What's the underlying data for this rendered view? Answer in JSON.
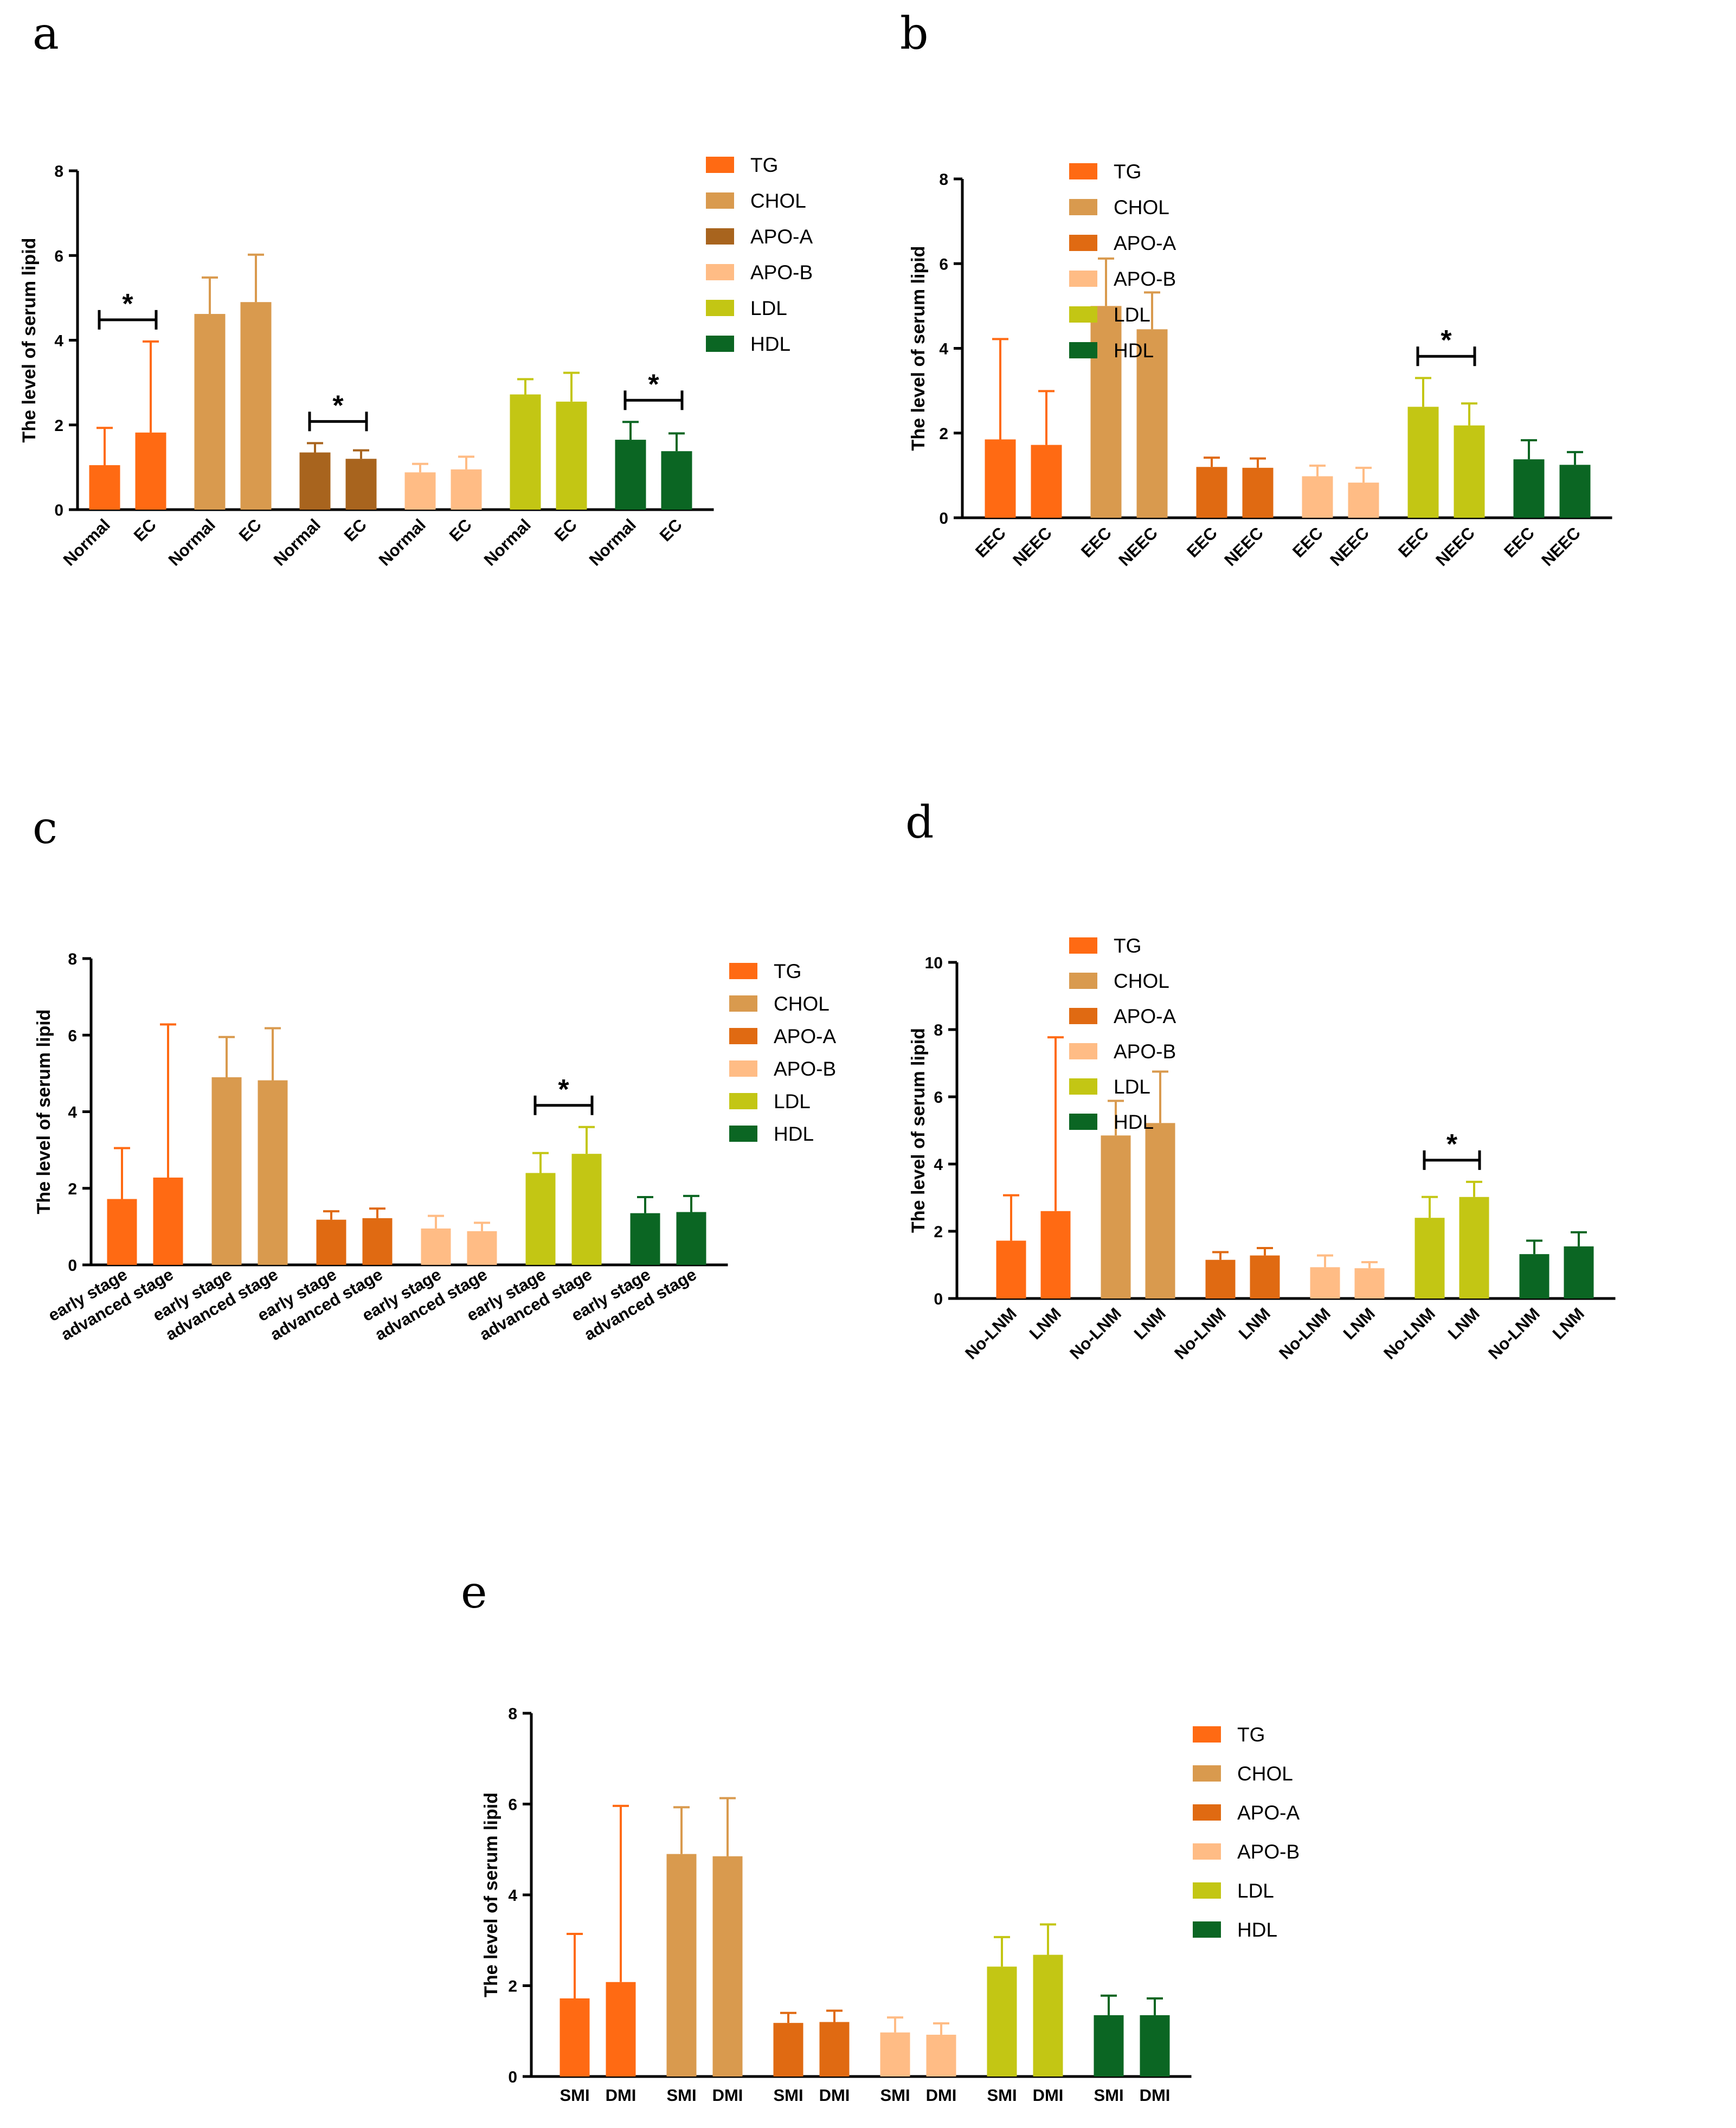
{
  "colors": {
    "TG": "#FF6A13",
    "CHOL": "#D99A4E",
    "APO-A_a": "#A8641E",
    "APO-A": "#E06A12",
    "APO-B": "#FFBC85",
    "LDL": "#C3C614",
    "HDL": "#0B6623"
  },
  "chart_data": [
    {
      "panel": "a",
      "type": "bar",
      "ylabel": "The level of serum lipid",
      "ylim": [
        0,
        8
      ],
      "yticks": [
        "0",
        "2",
        "4",
        "6",
        "8"
      ],
      "legend_position": "top-right",
      "legend": [
        "TG",
        "CHOL",
        "APO-A",
        "APO-B",
        "LDL",
        "HDL"
      ],
      "groups": [
        {
          "lipid": "TG",
          "categories": [
            "Normal",
            "EC"
          ],
          "values": [
            1.05,
            1.82
          ],
          "errors": [
            0.88,
            2.15
          ],
          "significant": true
        },
        {
          "lipid": "CHOL",
          "categories": [
            "Normal",
            "EC"
          ],
          "values": [
            4.62,
            4.9
          ],
          "errors": [
            0.86,
            1.12
          ],
          "significant": false
        },
        {
          "lipid": "APO-A",
          "categories": [
            "Normal",
            "EC"
          ],
          "values": [
            1.35,
            1.2
          ],
          "errors": [
            0.22,
            0.2
          ],
          "significant": true
        },
        {
          "lipid": "APO-B",
          "categories": [
            "Normal",
            "EC"
          ],
          "values": [
            0.88,
            0.95
          ],
          "errors": [
            0.2,
            0.3
          ],
          "significant": false
        },
        {
          "lipid": "LDL",
          "categories": [
            "Normal",
            "EC"
          ],
          "values": [
            2.72,
            2.55
          ],
          "errors": [
            0.36,
            0.68
          ],
          "significant": false
        },
        {
          "lipid": "HDL",
          "categories": [
            "Normal",
            "EC"
          ],
          "values": [
            1.65,
            1.38
          ],
          "errors": [
            0.42,
            0.42
          ],
          "significant": true
        }
      ],
      "significance_mark": "*"
    },
    {
      "panel": "b",
      "type": "bar",
      "ylabel": "The level of serum lipid",
      "ylim": [
        0,
        8
      ],
      "yticks": [
        "0",
        "2",
        "4",
        "6",
        "8"
      ],
      "legend_position": "top-right",
      "legend": [
        "TG",
        "CHOL",
        "APO-A",
        "APO-B",
        "LDL",
        "HDL"
      ],
      "groups": [
        {
          "lipid": "TG",
          "categories": [
            "EEC",
            "NEEC"
          ],
          "values": [
            1.85,
            1.72
          ],
          "errors": [
            2.37,
            1.27
          ],
          "significant": false
        },
        {
          "lipid": "CHOL",
          "categories": [
            "EEC",
            "NEEC"
          ],
          "values": [
            5.0,
            4.45
          ],
          "errors": [
            1.12,
            0.87
          ],
          "significant": false
        },
        {
          "lipid": "APO-A",
          "categories": [
            "EEC",
            "NEEC"
          ],
          "values": [
            1.2,
            1.18
          ],
          "errors": [
            0.22,
            0.22
          ],
          "significant": false
        },
        {
          "lipid": "APO-B",
          "categories": [
            "EEC",
            "NEEC"
          ],
          "values": [
            0.98,
            0.83
          ],
          "errors": [
            0.25,
            0.35
          ],
          "significant": false
        },
        {
          "lipid": "LDL",
          "categories": [
            "EEC",
            "NEEC"
          ],
          "values": [
            2.62,
            2.18
          ],
          "errors": [
            0.68,
            0.52
          ],
          "significant": true
        },
        {
          "lipid": "HDL",
          "categories": [
            "EEC",
            "NEEC"
          ],
          "values": [
            1.38,
            1.25
          ],
          "errors": [
            0.45,
            0.3
          ],
          "significant": false
        }
      ],
      "significance_mark": "*"
    },
    {
      "panel": "c",
      "type": "bar",
      "ylabel": "The level of serum lipid",
      "ylim": [
        0,
        8
      ],
      "yticks": [
        "0",
        "2",
        "4",
        "6",
        "8"
      ],
      "legend_position": "top-right",
      "legend": [
        "TG",
        "CHOL",
        "APO-A",
        "APO-B",
        "LDL",
        "HDL"
      ],
      "groups": [
        {
          "lipid": "TG",
          "categories": [
            "early stage",
            "advanced stage"
          ],
          "values": [
            1.72,
            2.28
          ],
          "errors": [
            1.33,
            4.0
          ],
          "significant": false
        },
        {
          "lipid": "CHOL",
          "categories": [
            "early stage",
            "advanced stage"
          ],
          "values": [
            4.9,
            4.82
          ],
          "errors": [
            1.05,
            1.36
          ],
          "significant": false
        },
        {
          "lipid": "APO-A",
          "categories": [
            "early stage",
            "advanced stage"
          ],
          "values": [
            1.18,
            1.22
          ],
          "errors": [
            0.22,
            0.25
          ],
          "significant": false
        },
        {
          "lipid": "APO-B",
          "categories": [
            "early stage",
            "advanced stage"
          ],
          "values": [
            0.95,
            0.88
          ],
          "errors": [
            0.33,
            0.22
          ],
          "significant": false
        },
        {
          "lipid": "LDL",
          "categories": [
            "early stage",
            "advanced stage"
          ],
          "values": [
            2.4,
            2.9
          ],
          "errors": [
            0.52,
            0.7
          ],
          "significant": true
        },
        {
          "lipid": "HDL",
          "categories": [
            "early stage",
            "advanced stage"
          ],
          "values": [
            1.35,
            1.38
          ],
          "errors": [
            0.42,
            0.42
          ],
          "significant": false
        }
      ],
      "significance_mark": "*"
    },
    {
      "panel": "d",
      "type": "bar",
      "ylabel": "The level of serum lipid",
      "ylim": [
        0,
        10
      ],
      "yticks": [
        "0",
        "2",
        "4",
        "6",
        "8",
        "10"
      ],
      "legend_position": "top-right",
      "legend": [
        "TG",
        "CHOL",
        "APO-A",
        "APO-B",
        "LDL",
        "HDL"
      ],
      "groups": [
        {
          "lipid": "TG",
          "categories": [
            "No-LNM",
            "LNM"
          ],
          "values": [
            1.72,
            2.6
          ],
          "errors": [
            1.35,
            5.17
          ],
          "significant": false
        },
        {
          "lipid": "CHOL",
          "categories": [
            "No-LNM",
            "LNM"
          ],
          "values": [
            4.85,
            5.22
          ],
          "errors": [
            1.03,
            1.53
          ],
          "significant": false
        },
        {
          "lipid": "APO-A",
          "categories": [
            "No-LNM",
            "LNM"
          ],
          "values": [
            1.15,
            1.28
          ],
          "errors": [
            0.23,
            0.22
          ],
          "significant": false
        },
        {
          "lipid": "APO-B",
          "categories": [
            "No-LNM",
            "LNM"
          ],
          "values": [
            0.93,
            0.9
          ],
          "errors": [
            0.35,
            0.18
          ],
          "significant": false
        },
        {
          "lipid": "LDL",
          "categories": [
            "No-LNM",
            "LNM"
          ],
          "values": [
            2.4,
            3.02
          ],
          "errors": [
            0.62,
            0.45
          ],
          "significant": true
        },
        {
          "lipid": "HDL",
          "categories": [
            "No-LNM",
            "LNM"
          ],
          "values": [
            1.32,
            1.55
          ],
          "errors": [
            0.4,
            0.42
          ],
          "significant": false
        }
      ],
      "significance_mark": "*"
    },
    {
      "panel": "e",
      "type": "bar",
      "ylabel": "The level of serum lipid",
      "ylim": [
        0,
        8
      ],
      "yticks": [
        "0",
        "2",
        "4",
        "6",
        "8"
      ],
      "legend_position": "top-right",
      "legend": [
        "TG",
        "CHOL",
        "APO-A",
        "APO-B",
        "LDL",
        "HDL"
      ],
      "groups": [
        {
          "lipid": "TG",
          "categories": [
            "SMI",
            "DMI"
          ],
          "values": [
            1.72,
            2.08
          ],
          "errors": [
            1.42,
            3.88
          ],
          "significant": false
        },
        {
          "lipid": "CHOL",
          "categories": [
            "SMI",
            "DMI"
          ],
          "values": [
            4.9,
            4.85
          ],
          "errors": [
            1.03,
            1.28
          ],
          "significant": false
        },
        {
          "lipid": "APO-A",
          "categories": [
            "SMI",
            "DMI"
          ],
          "values": [
            1.18,
            1.2
          ],
          "errors": [
            0.22,
            0.25
          ],
          "significant": false
        },
        {
          "lipid": "APO-B",
          "categories": [
            "SMI",
            "DMI"
          ],
          "values": [
            0.97,
            0.92
          ],
          "errors": [
            0.33,
            0.25
          ],
          "significant": false
        },
        {
          "lipid": "LDL",
          "categories": [
            "SMI",
            "DMI"
          ],
          "values": [
            2.42,
            2.68
          ],
          "errors": [
            0.65,
            0.67
          ],
          "significant": false
        },
        {
          "lipid": "HDL",
          "categories": [
            "SMI",
            "DMI"
          ],
          "values": [
            1.35,
            1.35
          ],
          "errors": [
            0.43,
            0.37
          ],
          "significant": false
        }
      ],
      "significance_mark": ""
    }
  ]
}
